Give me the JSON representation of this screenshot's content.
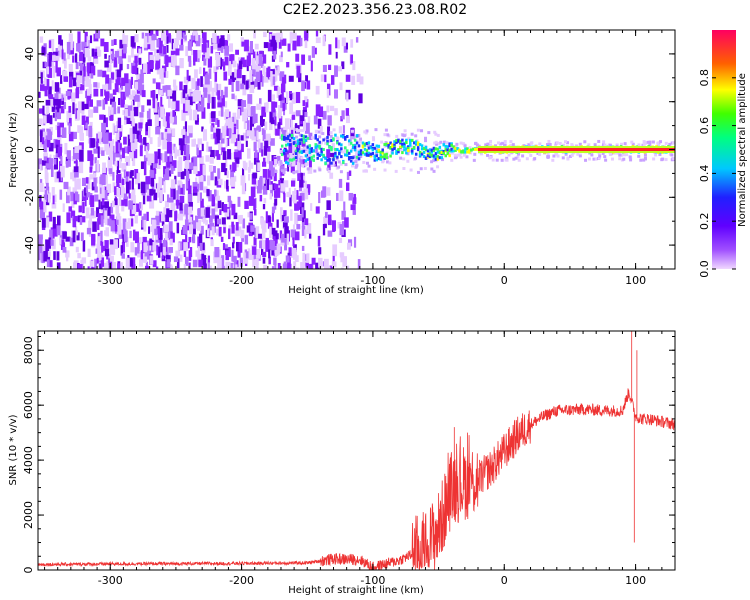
{
  "figure_title": "C2E2.2023.356.23.08.R02",
  "chart_data": [
    {
      "type": "heatmap",
      "title": "",
      "xlabel": "Height of straight line (km)",
      "ylabel": "Frequency (Hz)",
      "xlim": [
        -355,
        130
      ],
      "ylim": [
        -50,
        50
      ],
      "xticks": [
        -300,
        -200,
        -100,
        0,
        100
      ],
      "yticks": [
        -40,
        -20,
        0,
        20,
        40
      ],
      "colorbar": {
        "label": "Normalized spectral amplitude",
        "range": [
          0,
          1
        ],
        "ticks": [
          0.0,
          0.2,
          0.4,
          0.6,
          0.8
        ],
        "tick_labels": [
          "0.0",
          "0.2",
          "0.4",
          "0.6",
          "0.8"
        ],
        "colormap": "rainbow",
        "colors": [
          "#f0d8ff",
          "#8a00ff",
          "#2020ff",
          "#00c8ff",
          "#00ff40",
          "#ffff00",
          "#ff6000",
          "#ff0060"
        ]
      },
      "description_features": {
        "noise_region_x": [
          -355,
          -110
        ],
        "signal_line_start_x": -170,
        "signal_line_frequency": 0
      }
    },
    {
      "type": "line",
      "title": "",
      "xlabel": "Height of straight line (km)",
      "ylabel": "SNR (10 * v/v)",
      "xlim": [
        -355,
        130
      ],
      "ylim": [
        0,
        8700
      ],
      "xticks": [
        -300,
        -200,
        -100,
        0,
        100
      ],
      "yticks": [
        0,
        2000,
        4000,
        6000,
        8000
      ],
      "color": "#ee3333",
      "series": [
        {
          "envelope_x": [
            -355,
            -300,
            -200,
            -150,
            -130,
            -110,
            -100,
            -80,
            -60,
            -50,
            -40,
            -30,
            -20,
            -10,
            0,
            10,
            20,
            30,
            40,
            60,
            80,
            90,
            95,
            100,
            105,
            110,
            120,
            130
          ],
          "envelope_y": [
            200,
            220,
            240,
            260,
            400,
            380,
            100,
            350,
            800,
            1500,
            3000,
            3200,
            3300,
            3700,
            4300,
            4900,
            5300,
            5600,
            5800,
            5850,
            5800,
            5800,
            6500,
            5600,
            5500,
            5500,
            5400,
            5300
          ],
          "spikes": [
            {
              "x": 97,
              "y": 8700
            },
            {
              "x": 99,
              "y": 1000
            },
            {
              "x": 101,
              "y": 8000
            },
            {
              "x": -38,
              "y": 5200
            },
            {
              "x": -28,
              "y": 5000
            }
          ]
        }
      ]
    }
  ]
}
